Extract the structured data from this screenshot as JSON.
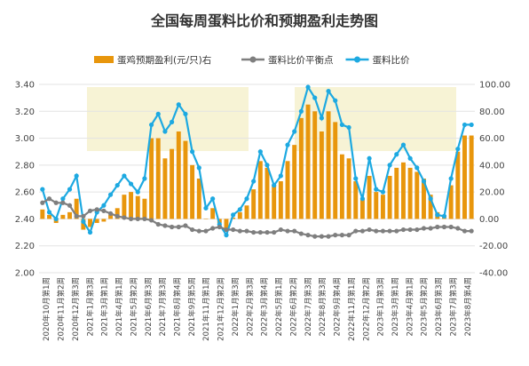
{
  "chart_data": {
    "type": "bar+line",
    "title": "全国每周蛋料比价和预期盈利走势图",
    "legend": [
      {
        "name": "蛋鸡预期盈利(元/只)右",
        "color": "#E8960C",
        "kind": "bar"
      },
      {
        "name": "蛋料比价平衡点",
        "color": "#7F7F7F",
        "kind": "line"
      },
      {
        "name": "蛋料比价",
        "color": "#1DA9E1",
        "kind": "line"
      }
    ],
    "left_axis": {
      "min": 2.0,
      "max": 3.4,
      "step": 0.2,
      "ticks": [
        "2.00",
        "2.20",
        "2.40",
        "2.60",
        "2.80",
        "3.00",
        "3.20",
        "3.40"
      ]
    },
    "right_axis": {
      "min": -40,
      "max": 100,
      "step": 20,
      "ticks": [
        "-40.00",
        "-20.00",
        "0.00",
        "20.00",
        "40.00",
        "60.00",
        "80.00",
        "100.00"
      ]
    },
    "x_labels": [
      "2020年10月第1周",
      "2020年11月第2周",
      "2020年12月第3周",
      "2021年1月第3周",
      "2021年3月第1周",
      "2021年4月第1周",
      "2021年5月第2周",
      "2021年6月第3周",
      "2021年7月第3周",
      "2021年8月第4周",
      "2021年9月第5周",
      "2021年11月第1周",
      "2021年12月第2周",
      "2022年1月第3周",
      "2022年2月第3周",
      "2022年3月第4周",
      "2022年5月第1周",
      "2022年6月第2周",
      "2022年7月第3周",
      "2022年8月第3周",
      "2022年9月第4周",
      "2022年11月第1周",
      "2022年12月第2周",
      "2023年1月第3周",
      "2023年3月第1周",
      "2023年4月第1周",
      "2023年5月第2周",
      "2023年6月第3周",
      "2023年7月第3周",
      "2023年8月第4周"
    ],
    "series": [
      {
        "name": "蛋料比价",
        "axis": "left",
        "values": [
          2.62,
          2.45,
          2.4,
          2.55,
          2.62,
          2.72,
          2.38,
          2.3,
          2.45,
          2.5,
          2.58,
          2.65,
          2.72,
          2.66,
          2.6,
          2.7,
          3.1,
          3.18,
          3.05,
          3.12,
          3.25,
          3.18,
          2.9,
          2.78,
          2.48,
          2.55,
          2.36,
          2.28,
          2.43,
          2.47,
          2.55,
          2.68,
          2.9,
          2.8,
          2.65,
          2.72,
          2.95,
          3.05,
          3.2,
          3.38,
          3.3,
          3.15,
          3.35,
          3.28,
          3.1,
          3.08,
          2.7,
          2.55,
          2.85,
          2.62,
          2.6,
          2.8,
          2.88,
          2.95,
          2.85,
          2.78,
          2.68,
          2.55,
          2.43,
          2.42,
          2.7,
          2.92,
          3.1,
          3.1
        ]
      },
      {
        "name": "蛋料比价平衡点",
        "axis": "left",
        "values": [
          2.52,
          2.55,
          2.52,
          2.52,
          2.5,
          2.42,
          2.42,
          2.46,
          2.47,
          2.46,
          2.44,
          2.42,
          2.41,
          2.4,
          2.4,
          2.4,
          2.39,
          2.36,
          2.35,
          2.34,
          2.34,
          2.35,
          2.32,
          2.31,
          2.31,
          2.33,
          2.34,
          2.32,
          2.32,
          2.31,
          2.31,
          2.3,
          2.3,
          2.3,
          2.3,
          2.32,
          2.31,
          2.31,
          2.29,
          2.28,
          2.27,
          2.27,
          2.27,
          2.28,
          2.28,
          2.28,
          2.31,
          2.31,
          2.32,
          2.31,
          2.31,
          2.31,
          2.31,
          2.32,
          2.32,
          2.32,
          2.33,
          2.33,
          2.34,
          2.34,
          2.34,
          2.33,
          2.31,
          2.31
        ]
      },
      {
        "name": "蛋鸡预期盈利(元/只)右",
        "axis": "right",
        "values": [
          7,
          3,
          -3,
          3,
          5,
          15,
          -8,
          -6,
          -3,
          -2,
          3,
          8,
          18,
          20,
          17,
          15,
          60,
          60,
          45,
          52,
          65,
          58,
          40,
          30,
          0,
          8,
          -3,
          -8,
          1,
          5,
          10,
          22,
          43,
          38,
          25,
          28,
          43,
          55,
          75,
          85,
          80,
          65,
          80,
          72,
          48,
          45,
          28,
          15,
          32,
          20,
          18,
          32,
          38,
          42,
          38,
          35,
          30,
          18,
          5,
          3,
          25,
          50,
          62,
          62
        ]
      }
    ]
  }
}
